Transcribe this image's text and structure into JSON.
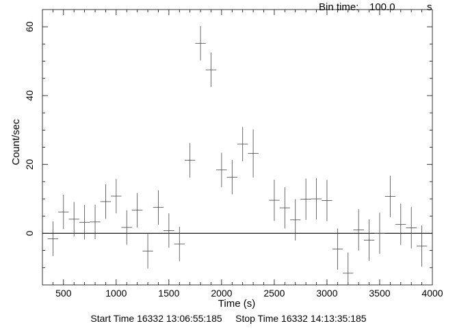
{
  "header": {
    "bin_label": "Bin time:",
    "bin_value": "100.0",
    "bin_unit": "s"
  },
  "footer": {
    "start_label": "Start Time",
    "start_value": "16332 13:06:55:185",
    "stop_label": "Stop Time",
    "stop_value": "16332 14:13:35:185"
  },
  "chart_data": {
    "type": "scatter",
    "title": "",
    "xlabel": "Time (s)",
    "ylabel": "Count/sec",
    "xlim": [
      300,
      4000
    ],
    "ylim": [
      -15,
      65
    ],
    "x_ticks": [
      500,
      1000,
      1500,
      2000,
      2500,
      3000,
      3500,
      4000
    ],
    "y_ticks": [
      0,
      20,
      40,
      60
    ],
    "grid": false,
    "zero_line": true,
    "x_half_width": 50,
    "x": [
      400,
      500,
      600,
      700,
      800,
      900,
      1000,
      1100,
      1200,
      1300,
      1400,
      1500,
      1600,
      1700,
      1800,
      1900,
      2000,
      2100,
      2200,
      2300,
      2500,
      2600,
      2700,
      2800,
      2900,
      3000,
      3100,
      3200,
      3300,
      3400,
      3500,
      3600,
      3700,
      3800,
      3900
    ],
    "y": [
      -1.6,
      6.2,
      4.1,
      3.2,
      3.3,
      9.2,
      10.8,
      1.7,
      6.7,
      -5.2,
      7.5,
      0.8,
      -3.1,
      21.2,
      55.2,
      47.5,
      18.4,
      16.3,
      25.9,
      23.2,
      9.6,
      7.4,
      3.9,
      9.9,
      10.0,
      9.5,
      -4.6,
      -11.6,
      1.0,
      -2.0,
      0.0,
      10.7,
      2.6,
      1.6,
      -3.7
    ],
    "y_err": [
      5.0,
      5.0,
      5.0,
      5.0,
      5.0,
      5.0,
      5.0,
      5.0,
      5.0,
      5.0,
      5.0,
      5.0,
      5.0,
      5.0,
      5.0,
      5.0,
      5.0,
      5.0,
      5.0,
      7.0,
      6.0,
      6.0,
      6.0,
      6.0,
      6.0,
      6.0,
      6.0,
      6.0,
      6.0,
      6.0,
      6.0,
      6.0,
      6.0,
      6.0,
      6.0
    ],
    "colors": {
      "data": "#444444",
      "axis": "#000000",
      "zero_line": "#000000"
    }
  }
}
